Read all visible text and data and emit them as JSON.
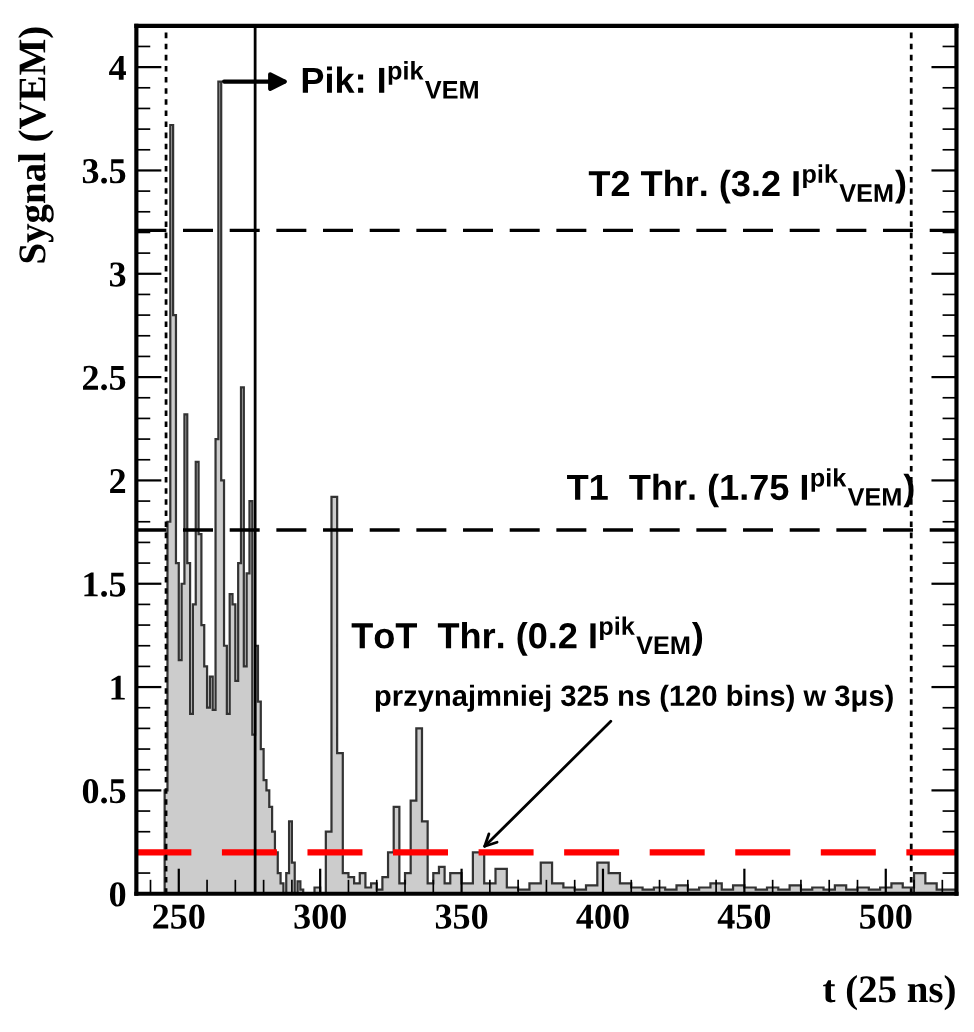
{
  "chart_data": {
    "type": "histogram",
    "xlabel": "t (25 ns)",
    "ylabel": "Sygnal (VEM)",
    "bins": [
      235,
      244,
      245,
      246,
      247,
      248,
      249,
      250,
      251,
      252,
      253,
      254,
      255,
      256,
      257,
      258,
      259,
      260,
      261,
      262,
      263,
      264,
      265,
      266,
      267,
      268,
      269,
      270,
      271,
      272,
      273,
      274,
      275,
      276,
      277,
      278,
      279,
      280,
      281,
      282,
      283,
      284,
      285,
      286,
      287,
      288,
      289,
      290,
      291,
      292,
      293,
      294,
      295,
      296,
      298,
      300,
      302,
      304,
      306,
      308,
      310,
      312,
      314,
      316,
      318,
      320,
      322,
      324,
      326,
      328,
      330,
      332,
      334,
      336,
      338,
      340,
      342,
      344,
      346,
      350,
      354,
      358,
      362,
      366,
      370,
      374,
      378,
      382,
      386,
      390,
      394,
      398,
      402,
      406,
      410,
      414,
      418,
      422,
      426,
      430,
      434,
      438,
      442,
      446,
      450,
      454,
      458,
      462,
      466,
      470,
      474,
      478,
      482,
      486,
      490,
      494,
      498,
      502,
      506,
      510,
      514,
      518,
      522,
      525
    ],
    "values": [
      0,
      0,
      0.5,
      1.8,
      3.72,
      2.8,
      1.6,
      1.13,
      1.5,
      2.32,
      1.6,
      0.87,
      1.4,
      2.09,
      1.74,
      1.3,
      1.1,
      0.9,
      1.05,
      0.89,
      2.2,
      3.93,
      2.0,
      1.2,
      0.87,
      1.45,
      1.4,
      1.03,
      1.6,
      2.45,
      1.1,
      1.55,
      1.9,
      0.77,
      1.2,
      0.93,
      0.7,
      0.55,
      0.5,
      0.42,
      0.3,
      0.2,
      0.1,
      0.05,
      0,
      0.1,
      0.35,
      0.15,
      0,
      0.06,
      0.02,
      0,
      0,
      0,
      0.03,
      0,
      0.3,
      1.92,
      0.68,
      0.1,
      0.08,
      0.05,
      0.1,
      0.03,
      0.05,
      0.02,
      0.08,
      0.2,
      0.42,
      0.05,
      0.1,
      0.45,
      0.8,
      0.35,
      0.05,
      0.1,
      0.13,
      0.05,
      0.1,
      0.05,
      0.2,
      0.05,
      0.12,
      0.03,
      0.02,
      0.05,
      0.15,
      0.05,
      0.03,
      0.02,
      0.04,
      0.15,
      0.1,
      0.05,
      0.03,
      0.02,
      0.03,
      0.02,
      0.04,
      0.02,
      0.03,
      0.05,
      0.02,
      0.04,
      0.03,
      0.02,
      0.03,
      0.02,
      0.04,
      0.02,
      0.03,
      0.02,
      0.04,
      0.02,
      0.03,
      0.02,
      0.03,
      0.05,
      0.03,
      0.1,
      0.05,
      0.02,
      0.02
    ],
    "color": "#cccccc",
    "xlim": [
      235,
      525
    ],
    "ylim": [
      0,
      4.2
    ],
    "xticks": [
      250,
      300,
      350,
      400,
      450,
      500
    ],
    "yticks": [
      0,
      0.5,
      1,
      1.5,
      2,
      2.5,
      3,
      3.5,
      4
    ],
    "ref_lines": [
      {
        "axis": "y",
        "value": 3.21,
        "color": "#000000",
        "line_style": "dashed"
      },
      {
        "axis": "y",
        "value": 1.76,
        "color": "#000000",
        "line_style": "dashed"
      },
      {
        "axis": "y",
        "value": 0.2,
        "color": "#ff0000",
        "line_style": "dashed"
      },
      {
        "axis": "x",
        "value": 245.5,
        "color": "#000000",
        "line_style": "dotted"
      },
      {
        "axis": "x",
        "value": 509,
        "color": "#000000",
        "line_style": "dotted"
      },
      {
        "axis": "x",
        "value": 277,
        "color": "#000000",
        "line_style": "solid"
      }
    ],
    "annotations": [
      {
        "text": "Pik: I$^{pik}$$_{VEM}$",
        "x": 266,
        "y": 3.93
      },
      {
        "text": "przynajmniej 325 ns (120 bins) w 3μs)",
        "x": 356,
        "y": 0.2
      },
      "T2 Thr. (3.2 I$^{pik}$$_{VEM}$)",
      "T1  Thr. (1.75 I$^{pik}$$_{VEM}$)",
      "ToT  Thr. (0.2 I$^{pik}$$_{VEM}$)"
    ],
    "grid": false
  }
}
